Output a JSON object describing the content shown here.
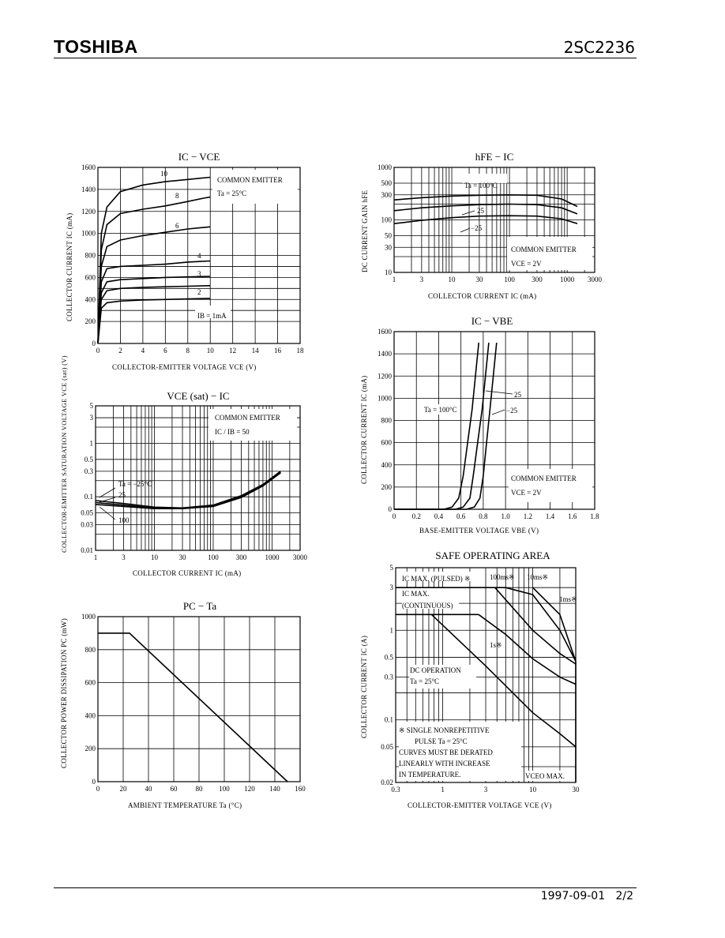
{
  "header": {
    "brand": "TOSHIBA",
    "part_number": "2SC2236"
  },
  "footer": {
    "date": "1997-09-01",
    "page": "2/2"
  },
  "chart_data": [
    {
      "id": "ic_vce",
      "type": "line",
      "title": "IC − VCE",
      "xlabel": "COLLECTOR-EMITTER VOLTAGE   VCE   (V)",
      "ylabel": "COLLECTOR CURRENT   IC   (mA)",
      "xlim": [
        0,
        18
      ],
      "ylim": [
        0,
        1600
      ],
      "xticks": [
        0,
        2,
        4,
        6,
        8,
        10,
        12,
        14,
        16,
        18
      ],
      "yticks": [
        0,
        200,
        400,
        600,
        800,
        1000,
        1200,
        1400,
        1600
      ],
      "annotations": [
        "COMMON EMITTER",
        "Ta = 25°C",
        "IB = 1mA"
      ],
      "series": [
        {
          "name": "10",
          "x": [
            0,
            0.3,
            0.8,
            2,
            4,
            6,
            8,
            10
          ],
          "y": [
            0,
            1000,
            1240,
            1380,
            1440,
            1470,
            1490,
            1510
          ]
        },
        {
          "name": "8",
          "x": [
            0,
            0.3,
            0.8,
            2,
            4,
            6,
            8,
            9.4,
            10
          ],
          "y": [
            0,
            850,
            1080,
            1180,
            1220,
            1250,
            1290,
            1320,
            1330
          ]
        },
        {
          "name": "6",
          "x": [
            0,
            0.3,
            0.8,
            2,
            4,
            6,
            8,
            10
          ],
          "y": [
            0,
            700,
            880,
            940,
            980,
            1010,
            1040,
            1060
          ]
        },
        {
          "name": "4",
          "x": [
            0,
            0.3,
            0.8,
            2,
            4,
            6,
            8,
            10
          ],
          "y": [
            0,
            560,
            680,
            700,
            710,
            720,
            740,
            750
          ]
        },
        {
          "name": "3",
          "x": [
            0,
            0.3,
            0.8,
            2,
            4,
            6,
            8,
            10
          ],
          "y": [
            0,
            460,
            560,
            580,
            590,
            600,
            605,
            610
          ]
        },
        {
          "name": "2",
          "x": [
            0,
            0.3,
            0.8,
            2,
            4,
            6,
            8,
            10
          ],
          "y": [
            0,
            400,
            480,
            500,
            510,
            515,
            520,
            525
          ]
        },
        {
          "name": "1",
          "x": [
            0,
            0.3,
            0.8,
            2,
            4,
            6,
            8,
            10
          ],
          "y": [
            0,
            320,
            370,
            385,
            395,
            400,
            405,
            410
          ]
        }
      ]
    },
    {
      "id": "hfe_ic",
      "type": "line",
      "title": "hFE − IC",
      "xlabel": "COLLECTOR CURRENT   IC   (mA)",
      "ylabel": "DC CURRENT GAIN   hFE",
      "xscale": "log",
      "yscale": "log",
      "xlim": [
        1,
        3000
      ],
      "ylim": [
        10,
        1000
      ],
      "xticks": [
        "1",
        "3",
        "10",
        "30",
        "100",
        "300",
        "1000",
        "3000"
      ],
      "yticks": [
        "10",
        "30",
        "50",
        "100",
        "300",
        "500",
        "1000"
      ],
      "annotations": [
        "COMMON EMITTER",
        "VCE = 2V"
      ],
      "series": [
        {
          "name": "Ta = 100°C",
          "x": [
            1,
            3,
            10,
            30,
            100,
            300,
            800,
            1500
          ],
          "y": [
            240,
            265,
            285,
            295,
            300,
            295,
            250,
            180
          ]
        },
        {
          "name": "25",
          "x": [
            1,
            3,
            10,
            30,
            100,
            300,
            800,
            1500
          ],
          "y": [
            150,
            170,
            185,
            195,
            200,
            195,
            170,
            130
          ]
        },
        {
          "name": "−25",
          "x": [
            1,
            3,
            10,
            30,
            100,
            300,
            800,
            1500
          ],
          "y": [
            85,
            98,
            110,
            118,
            120,
            118,
            105,
            85
          ]
        }
      ]
    },
    {
      "id": "vcesat_ic",
      "type": "line",
      "title": "VCE (sat) − IC",
      "xlabel": "COLLECTOR CURRENT   IC   (mA)",
      "ylabel": "COLLECTOR-EMITTER SATURATION VOLTAGE   VCE (sat)   (V)",
      "xscale": "log",
      "yscale": "log",
      "xlim": [
        1,
        3000
      ],
      "ylim": [
        0.01,
        5
      ],
      "xticks": [
        "1",
        "3",
        "10",
        "30",
        "100",
        "300",
        "1000",
        "3000"
      ],
      "yticks": [
        "0.01",
        "0.03",
        "0.05",
        "0.1",
        "0.3",
        "0.5",
        "1",
        "3",
        "5"
      ],
      "annotations": [
        "COMMON EMITTER",
        "IC / IB = 50"
      ],
      "series": [
        {
          "name": "Ta = −25°C",
          "x": [
            1,
            3,
            10,
            30,
            100,
            300,
            700,
            1400
          ],
          "y": [
            0.085,
            0.075,
            0.064,
            0.062,
            0.07,
            0.105,
            0.17,
            0.3
          ]
        },
        {
          "name": "25",
          "x": [
            1,
            3,
            10,
            30,
            100,
            300,
            700,
            1400
          ],
          "y": [
            0.078,
            0.07,
            0.062,
            0.061,
            0.068,
            0.1,
            0.165,
            0.29
          ]
        },
        {
          "name": "100",
          "x": [
            1,
            3,
            10,
            30,
            100,
            300,
            700,
            1400
          ],
          "y": [
            0.072,
            0.066,
            0.06,
            0.06,
            0.066,
            0.097,
            0.16,
            0.28
          ]
        }
      ]
    },
    {
      "id": "ic_vbe",
      "type": "line",
      "title": "IC − VBE",
      "xlabel": "BASE-EMITTER VOLTAGE   VBE   (V)",
      "ylabel": "COLLECTOR CURRENT   IC   (mA)",
      "xlim": [
        0,
        1.8
      ],
      "ylim": [
        0,
        1600
      ],
      "xticks": [
        "0",
        "0.2",
        "0.4",
        "0.6",
        "0.8",
        "1.0",
        "1.2",
        "1.4",
        "1.6",
        "1.8"
      ],
      "yticks": [
        0,
        200,
        400,
        600,
        800,
        1000,
        1200,
        1400,
        1600
      ],
      "annotations": [
        "COMMON EMITTER",
        "VCE = 2V"
      ],
      "series": [
        {
          "name": "Ta = 100°C",
          "x": [
            0,
            0.45,
            0.52,
            0.58,
            0.62,
            0.66,
            0.7,
            0.76
          ],
          "y": [
            0,
            0,
            20,
            100,
            300,
            600,
            900,
            1500
          ]
        },
        {
          "name": "25",
          "x": [
            0,
            0.55,
            0.62,
            0.68,
            0.71,
            0.75,
            0.79,
            0.85
          ],
          "y": [
            0,
            0,
            20,
            100,
            300,
            600,
            900,
            1500
          ]
        },
        {
          "name": "−25",
          "x": [
            0,
            0.65,
            0.72,
            0.77,
            0.8,
            0.83,
            0.86,
            0.92
          ],
          "y": [
            0,
            0,
            20,
            100,
            300,
            600,
            900,
            1500
          ]
        }
      ]
    },
    {
      "id": "pc_ta",
      "type": "line",
      "title": "PC − Ta",
      "xlabel": "AMBIENT TEMPERATURE   Ta   (°C)",
      "ylabel": "COLLECTOR POWER DISSIPATION   PC   (mW)",
      "xlim": [
        0,
        160
      ],
      "ylim": [
        0,
        1000
      ],
      "xticks": [
        0,
        20,
        40,
        60,
        80,
        100,
        120,
        140,
        160
      ],
      "yticks": [
        0,
        200,
        400,
        600,
        800,
        1000
      ],
      "series": [
        {
          "name": "PC",
          "x": [
            0,
            25,
            150
          ],
          "y": [
            900,
            900,
            0
          ]
        }
      ]
    },
    {
      "id": "soa",
      "type": "line",
      "title": "SAFE OPERATING AREA",
      "xlabel": "COLLECTOR-EMITTER VOLTAGE   VCE   (V)",
      "ylabel": "COLLECTOR CURRENT   IC   (A)",
      "xscale": "log",
      "yscale": "log",
      "xlim": [
        0.3,
        30
      ],
      "ylim": [
        0.02,
        5
      ],
      "xticks": [
        "0.3",
        "1",
        "3",
        "10",
        "30"
      ],
      "yticks": [
        "0.02",
        "0.05",
        "0.1",
        "0.3",
        "0.5",
        "1",
        "3",
        "5"
      ],
      "annotations": [
        "IC MAX. (PULSED) ※",
        "100ms※",
        "10ms※",
        "IC MAX.",
        "(CONTINUOUS)",
        "1ms※",
        "1s※",
        "DC OPERATION",
        "Ta = 25°C",
        "※  SINGLE NONREPETITIVE",
        "PULSE  Ta = 25°C",
        "CURVES MUST BE DERATED",
        "LINEARLY WITH INCREASE",
        "IN TEMPERATURE.",
        "VCEO MAX."
      ],
      "series": [
        {
          "name": "IC MAX. (PULSED)",
          "x": [
            0.3,
            5
          ],
          "y": [
            3,
            3
          ]
        },
        {
          "name": "IC MAX. (CONTINUOUS)",
          "x": [
            0.3,
            2.5
          ],
          "y": [
            1.5,
            1.5
          ]
        },
        {
          "name": "10ms",
          "x": [
            5,
            10,
            20,
            30
          ],
          "y": [
            3,
            2.5,
            1.0,
            0.45
          ]
        },
        {
          "name": "1ms",
          "x": [
            10,
            20,
            30
          ],
          "y": [
            3,
            1.5,
            0.45
          ]
        },
        {
          "name": "100ms",
          "x": [
            3.8,
            10,
            20,
            30
          ],
          "y": [
            3,
            1.0,
            0.55,
            0.42
          ]
        },
        {
          "name": "1s",
          "x": [
            2.5,
            5,
            10,
            20,
            30
          ],
          "y": [
            1.5,
            0.9,
            0.48,
            0.3,
            0.25
          ]
        },
        {
          "name": "DC",
          "x": [
            0.75,
            3,
            10,
            20,
            30
          ],
          "y": [
            1.5,
            0.4,
            0.12,
            0.07,
            0.05
          ]
        },
        {
          "name": "VCEO MAX.",
          "x": [
            30,
            30
          ],
          "y": [
            0.02,
            0.45
          ]
        }
      ]
    }
  ]
}
